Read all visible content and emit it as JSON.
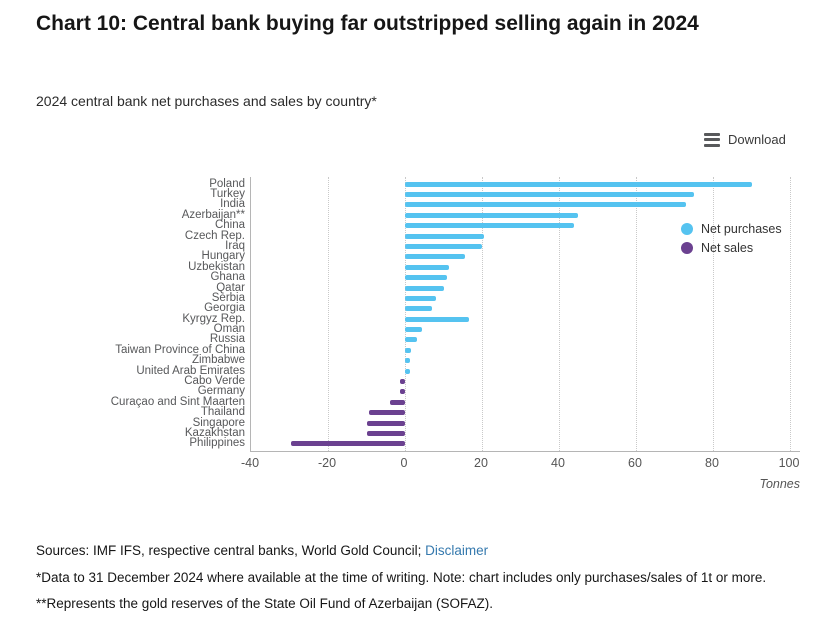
{
  "page": {
    "title": "Chart 10: Central bank buying far outstripped selling again in 2024",
    "subtitle": "2024 central bank net purchases and sales by country*",
    "download_label": "Download"
  },
  "chart_data": {
    "type": "bar",
    "orientation": "horizontal",
    "title": "2024 central bank net purchases and sales by country*",
    "xlabel": "Tonnes",
    "xlim": [
      -40,
      100
    ],
    "xticks": [
      -40,
      -20,
      0,
      20,
      40,
      60,
      80,
      100
    ],
    "grid": "vertical-dotted",
    "legend_position": "right",
    "legend": [
      {
        "label": "Net purchases",
        "color": "#55c3f0"
      },
      {
        "label": "Net sales",
        "color": "#6b4190"
      }
    ],
    "categories": [
      "Poland",
      "Turkey",
      "India",
      "Azerbaijan**",
      "China",
      "Czech Rep.",
      "Iraq",
      "Hungary",
      "Uzbekistan",
      "Ghana",
      "Qatar",
      "Serbia",
      "Georgia",
      "Kyrgyz Rep.",
      "Oman",
      "Russia",
      "Taiwan Province of China",
      "Zimbabwe",
      "United Arab Emirates",
      "Cabo Verde",
      "Germany",
      "Curaçao and Sint Maarten",
      "Thailand",
      "Singapore",
      "Kazakhstan",
      "Philippines"
    ],
    "values": [
      90,
      75,
      73,
      45,
      44,
      20.5,
      20,
      15.5,
      11.5,
      11,
      10,
      8,
      7,
      16.6,
      4.3,
      3.1,
      1.5,
      1.3,
      1.2,
      -1.2,
      -1.2,
      -3.8,
      -9.3,
      -9.9,
      -9.8,
      -29.5
    ],
    "colors": {
      "positive": "#55c3f0",
      "negative": "#6b4190"
    },
    "unit": "Tonnes"
  },
  "footer": {
    "sources_text": "Sources: IMF IFS, respective central banks, World Gold Council;",
    "disclaimer_link": "Disclaimer",
    "footnote": "*Data to 31 December 2024 where available at the time of writing. Note: chart includes only purchases/sales of 1t or more. **Represents the gold reserves of the State Oil Fund of Azerbaijan (SOFAZ)."
  }
}
